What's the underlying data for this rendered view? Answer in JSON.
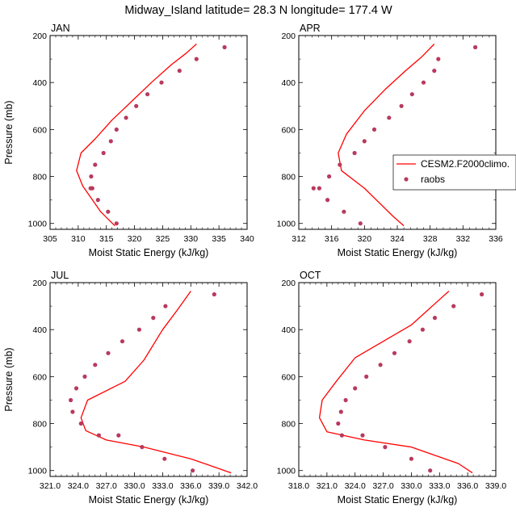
{
  "figure": {
    "title": "Midway_Island  latitude= 28.3 N longitude= 177.4 W"
  },
  "colors": {
    "model_line": "#ff0000",
    "obs_marker": "#b83a5e",
    "axes": "#000000"
  },
  "legend": {
    "model_label": "CESM2.F2000climo.",
    "obs_label": "raobs",
    "placement": "right side of APR panel"
  },
  "chart_data": [
    {
      "type": "line",
      "panel": "JAN",
      "title": "JAN",
      "xlabel": "Moist Static Energy (kJ/kg)",
      "ylabel": "Pressure (mb)",
      "xlim": [
        305,
        340
      ],
      "ylim": [
        1025,
        200
      ],
      "xticks": [
        305,
        310,
        315,
        320,
        325,
        330,
        335,
        340
      ],
      "xtick_labels": [
        "305",
        "310",
        "315",
        "320",
        "325",
        "330",
        "335",
        "340"
      ],
      "yticks": [
        200,
        400,
        600,
        800,
        1000
      ],
      "ytick_labels": [
        "200",
        "400",
        "600",
        "800",
        "1000"
      ],
      "series": [
        {
          "name": "CESM2.F2000climo.",
          "kind": "line",
          "x": [
            331.0,
            329.2,
            326.5,
            323.0,
            319.5,
            316.0,
            313.0,
            310.5,
            309.7,
            310.8,
            314.0,
            316.5
          ],
          "y": [
            236,
            275,
            325,
            400,
            480,
            560,
            640,
            700,
            775,
            840,
            950,
            1010
          ]
        },
        {
          "name": "raobs",
          "kind": "scatter",
          "x": [
            336.0,
            331.0,
            328.0,
            324.8,
            322.3,
            320.3,
            318.5,
            316.8,
            315.8,
            314.5,
            313.0,
            312.3,
            312.2,
            312.5,
            313.5,
            315.3,
            316.8
          ],
          "y": [
            250,
            300,
            350,
            400,
            450,
            500,
            550,
            600,
            650,
            700,
            750,
            800,
            850,
            850,
            900,
            950,
            1000
          ]
        }
      ]
    },
    {
      "type": "line",
      "panel": "APR",
      "title": "APR",
      "xlabel": "Moist Static Energy (kJ/kg)",
      "ylabel": "",
      "xlim": [
        312,
        336
      ],
      "ylim": [
        1025,
        200
      ],
      "xticks": [
        312,
        316,
        320,
        324,
        328,
        332,
        336
      ],
      "xtick_labels": [
        "312",
        "316",
        "320",
        "324",
        "328",
        "332",
        "336"
      ],
      "yticks": [
        200,
        400,
        600,
        800,
        1000
      ],
      "ytick_labels": [
        "200",
        "400",
        "600",
        "800",
        "1000"
      ],
      "series": [
        {
          "name": "CESM2.F2000climo.",
          "kind": "line",
          "x": [
            328.5,
            327.0,
            325.0,
            322.5,
            320.0,
            317.8,
            316.8,
            317.2,
            320.0,
            323.5,
            324.8
          ],
          "y": [
            236,
            290,
            350,
            430,
            520,
            620,
            700,
            775,
            850,
            970,
            1010
          ]
        },
        {
          "name": "raobs",
          "kind": "scatter",
          "x": [
            333.5,
            329.0,
            328.5,
            327.2,
            325.8,
            324.5,
            323.0,
            321.2,
            320.0,
            318.8,
            317.0,
            315.7,
            314.5,
            313.8,
            315.5,
            317.5,
            319.5
          ],
          "y": [
            250,
            300,
            350,
            400,
            450,
            500,
            550,
            600,
            650,
            700,
            750,
            800,
            850,
            850,
            900,
            950,
            1000
          ]
        }
      ]
    },
    {
      "type": "line",
      "panel": "JUL",
      "title": "JUL",
      "xlabel": "Moist Static Energy (kJ/kg)",
      "ylabel": "Pressure (mb)",
      "xlim": [
        321,
        342
      ],
      "ylim": [
        1025,
        200
      ],
      "xticks": [
        321,
        324,
        327,
        330,
        333,
        336,
        339,
        342
      ],
      "xtick_labels": [
        "321.0",
        "324.0",
        "327.0",
        "330.0",
        "333.0",
        "336.0",
        "339.0",
        "342.0"
      ],
      "yticks": [
        200,
        400,
        600,
        800,
        1000
      ],
      "ytick_labels": [
        "200",
        "400",
        "600",
        "800",
        "1000"
      ],
      "series": [
        {
          "name": "CESM2.F2000climo.",
          "kind": "line",
          "x": [
            336.0,
            334.5,
            333.0,
            331.0,
            329.0,
            325.0,
            324.3,
            324.8,
            327.0,
            331.0,
            336.0,
            340.3
          ],
          "y": [
            236,
            320,
            400,
            530,
            620,
            700,
            775,
            830,
            870,
            900,
            950,
            1010
          ]
        },
        {
          "name": "raobs",
          "kind": "scatter",
          "x": [
            338.5,
            333.3,
            332.0,
            330.5,
            328.7,
            327.2,
            325.8,
            324.7,
            323.8,
            323.2,
            323.4,
            324.3,
            326.2,
            328.3,
            330.8,
            333.2,
            336.2
          ],
          "y": [
            250,
            300,
            350,
            400,
            450,
            500,
            550,
            600,
            650,
            700,
            750,
            800,
            850,
            850,
            900,
            950,
            1000
          ]
        }
      ]
    },
    {
      "type": "line",
      "panel": "OCT",
      "title": "OCT",
      "xlabel": "Moist Static Energy (kJ/kg)",
      "ylabel": "",
      "xlim": [
        318,
        339
      ],
      "ylim": [
        1025,
        200
      ],
      "xticks": [
        318,
        321,
        324,
        327,
        330,
        333,
        336,
        339
      ],
      "xtick_labels": [
        "318.0",
        "321.0",
        "324.0",
        "327.0",
        "330.0",
        "333.0",
        "336.0",
        "339.0"
      ],
      "yticks": [
        200,
        400,
        600,
        800,
        1000
      ],
      "ytick_labels": [
        "200",
        "400",
        "600",
        "800",
        "1000"
      ],
      "series": [
        {
          "name": "CESM2.F2000climo.",
          "kind": "line",
          "x": [
            334.0,
            332.5,
            330.0,
            327.0,
            324.0,
            322.0,
            320.5,
            320.2,
            321.0,
            325.0,
            330.0,
            335.0,
            336.5
          ],
          "y": [
            236,
            290,
            380,
            450,
            520,
            620,
            700,
            775,
            835,
            870,
            900,
            970,
            1010
          ]
        },
        {
          "name": "raobs",
          "kind": "scatter",
          "x": [
            337.5,
            334.5,
            332.5,
            331.2,
            329.8,
            328.2,
            326.7,
            325.2,
            324.0,
            323.0,
            322.5,
            322.2,
            322.6,
            324.8,
            327.2,
            330.0,
            332.0
          ],
          "y": [
            250,
            300,
            350,
            400,
            450,
            500,
            550,
            600,
            650,
            700,
            750,
            800,
            850,
            850,
            900,
            950,
            1000
          ]
        }
      ]
    }
  ]
}
